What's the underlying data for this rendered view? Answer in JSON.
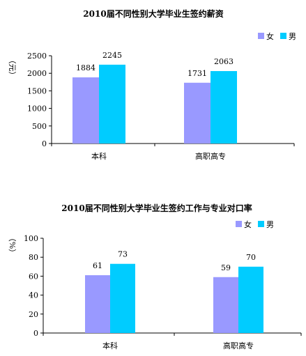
{
  "chart_data": [
    {
      "type": "bar",
      "title": "2010届不同性别大学毕业生签约薪资",
      "ylabel": "（元）",
      "categories": [
        "本科",
        "高职高专"
      ],
      "series": [
        {
          "name": "女",
          "values": [
            1884,
            1731
          ],
          "color": "#9999ff"
        },
        {
          "name": "男",
          "values": [
            2245,
            2063
          ],
          "color": "#00ccff"
        }
      ],
      "ylim": [
        0,
        2500
      ],
      "yticks": [
        0,
        500,
        1000,
        1500,
        2000,
        2500
      ],
      "data_labels": true,
      "grid": false,
      "legend_position": "top-right"
    },
    {
      "type": "bar",
      "title": "2010届不同性别大学毕业生签约工作与专业对口率",
      "ylabel": "（%）",
      "categories": [
        "本科",
        "高职高专"
      ],
      "series": [
        {
          "name": "女",
          "values": [
            61,
            59
          ],
          "color": "#9999ff"
        },
        {
          "name": "男",
          "values": [
            73,
            70
          ],
          "color": "#00ccff"
        }
      ],
      "ylim": [
        0,
        100
      ],
      "yticks": [
        0,
        20,
        40,
        60,
        80,
        100
      ],
      "data_labels": true,
      "grid": false,
      "legend_position": "top-right"
    }
  ]
}
